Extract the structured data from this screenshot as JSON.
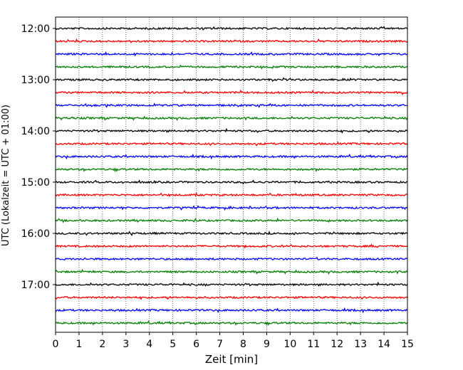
{
  "chart_data": {
    "type": "line",
    "title": "",
    "xlabel": "Zeit  [min]",
    "ylabel": "UTC (Lokalzeit = UTC + 01:00)",
    "xlim": [
      0,
      15
    ],
    "x_ticks": [
      "0",
      "1",
      "2",
      "3",
      "4",
      "5",
      "6",
      "7",
      "8",
      "9",
      "10",
      "11",
      "12",
      "13",
      "14",
      "15"
    ],
    "y_ticks": [
      "12:00",
      "13:00",
      "14:00",
      "15:00",
      "16:00",
      "17:00"
    ],
    "trace_start_times": [
      "12:00",
      "12:15",
      "12:30",
      "12:45",
      "13:00",
      "13:15",
      "13:30",
      "13:45",
      "14:00",
      "14:15",
      "14:30",
      "14:45",
      "15:00",
      "15:15",
      "15:30",
      "15:45",
      "16:00",
      "16:15",
      "16:30",
      "16:45",
      "17:00",
      "17:15",
      "17:30",
      "17:45"
    ],
    "trace_duration_min": 15,
    "trace_colors": [
      "#000000",
      "#ff0000",
      "#0000ff",
      "#008000"
    ],
    "vertical_grid": true,
    "grid_style": "dotted"
  }
}
